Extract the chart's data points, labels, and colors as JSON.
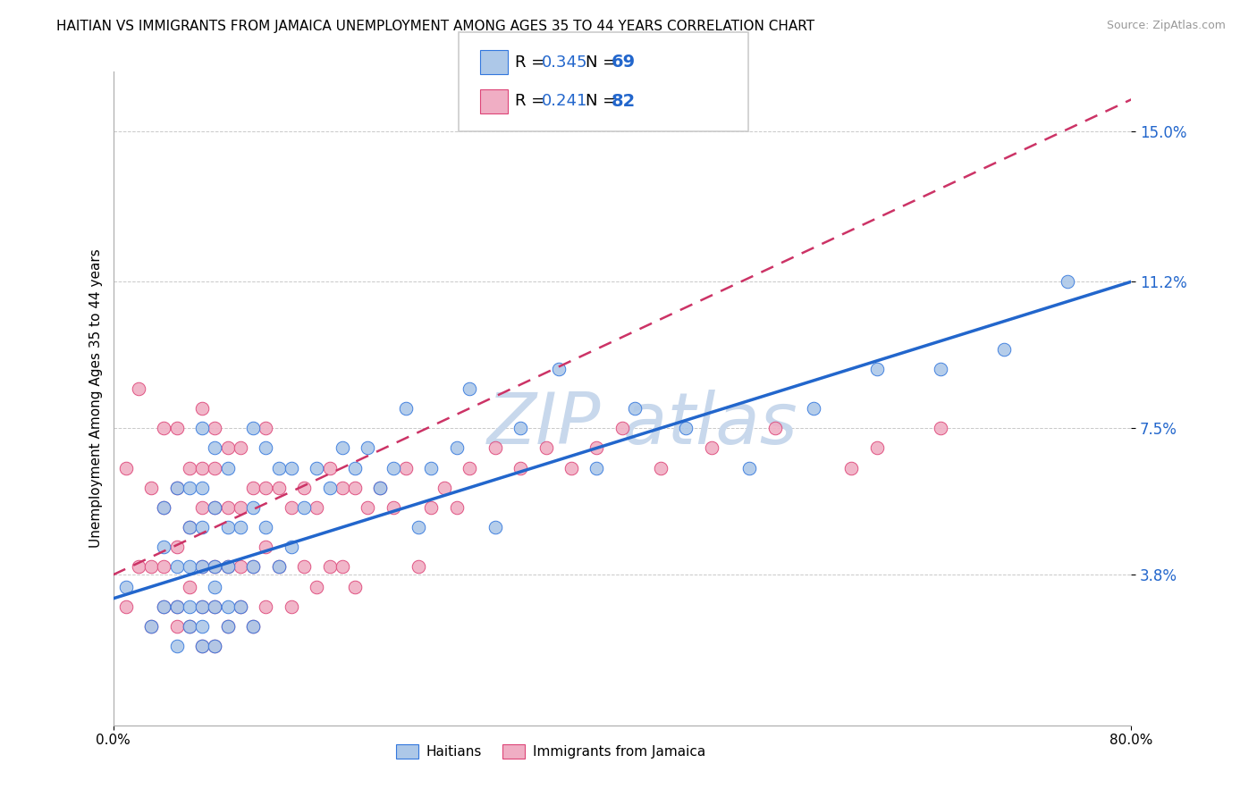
{
  "title": "HAITIAN VS IMMIGRANTS FROM JAMAICA UNEMPLOYMENT AMONG AGES 35 TO 44 YEARS CORRELATION CHART",
  "source": "Source: ZipAtlas.com",
  "ylabel": "Unemployment Among Ages 35 to 44 years",
  "xlim": [
    0.0,
    0.8
  ],
  "ylim": [
    0.0,
    0.165
  ],
  "xtick_positions": [
    0.0,
    0.8
  ],
  "xticklabels": [
    "0.0%",
    "80.0%"
  ],
  "ytick_positions": [
    0.038,
    0.075,
    0.112,
    0.15
  ],
  "ytick_labels": [
    "3.8%",
    "7.5%",
    "11.2%",
    "15.0%"
  ],
  "bottom_legend_blue": "Haitians",
  "bottom_legend_pink": "Immigrants from Jamaica",
  "blue_R": 0.345,
  "blue_N": 69,
  "pink_R": 0.241,
  "pink_N": 82,
  "blue_color": "#adc8e8",
  "pink_color": "#f0aec4",
  "blue_line_color": "#2266cc",
  "pink_line_color": "#cc3366",
  "blue_edge_color": "#3377dd",
  "pink_edge_color": "#dd4477",
  "title_fontsize": 11,
  "source_fontsize": 9,
  "watermark_color": "#c8d8ec",
  "scatter_size": 110,
  "blue_scatter_x": [
    0.01,
    0.03,
    0.04,
    0.04,
    0.04,
    0.05,
    0.05,
    0.05,
    0.05,
    0.06,
    0.06,
    0.06,
    0.06,
    0.06,
    0.07,
    0.07,
    0.07,
    0.07,
    0.07,
    0.07,
    0.07,
    0.08,
    0.08,
    0.08,
    0.08,
    0.08,
    0.08,
    0.09,
    0.09,
    0.09,
    0.09,
    0.09,
    0.1,
    0.1,
    0.11,
    0.11,
    0.11,
    0.11,
    0.12,
    0.12,
    0.13,
    0.13,
    0.14,
    0.14,
    0.15,
    0.16,
    0.17,
    0.18,
    0.19,
    0.2,
    0.21,
    0.22,
    0.23,
    0.24,
    0.25,
    0.27,
    0.28,
    0.3,
    0.32,
    0.35,
    0.38,
    0.41,
    0.45,
    0.5,
    0.55,
    0.6,
    0.65,
    0.7,
    0.75
  ],
  "blue_scatter_y": [
    0.035,
    0.025,
    0.03,
    0.045,
    0.055,
    0.02,
    0.03,
    0.04,
    0.06,
    0.025,
    0.03,
    0.04,
    0.05,
    0.06,
    0.02,
    0.025,
    0.03,
    0.04,
    0.05,
    0.06,
    0.075,
    0.02,
    0.03,
    0.035,
    0.04,
    0.055,
    0.07,
    0.025,
    0.03,
    0.04,
    0.05,
    0.065,
    0.03,
    0.05,
    0.025,
    0.04,
    0.055,
    0.075,
    0.05,
    0.07,
    0.04,
    0.065,
    0.045,
    0.065,
    0.055,
    0.065,
    0.06,
    0.07,
    0.065,
    0.07,
    0.06,
    0.065,
    0.08,
    0.05,
    0.065,
    0.07,
    0.085,
    0.05,
    0.075,
    0.09,
    0.065,
    0.08,
    0.075,
    0.065,
    0.08,
    0.09,
    0.09,
    0.095,
    0.112
  ],
  "pink_scatter_x": [
    0.01,
    0.01,
    0.02,
    0.02,
    0.03,
    0.03,
    0.03,
    0.04,
    0.04,
    0.04,
    0.04,
    0.05,
    0.05,
    0.05,
    0.05,
    0.05,
    0.06,
    0.06,
    0.06,
    0.06,
    0.07,
    0.07,
    0.07,
    0.07,
    0.07,
    0.07,
    0.08,
    0.08,
    0.08,
    0.08,
    0.08,
    0.08,
    0.09,
    0.09,
    0.09,
    0.09,
    0.1,
    0.1,
    0.1,
    0.1,
    0.11,
    0.11,
    0.11,
    0.12,
    0.12,
    0.12,
    0.12,
    0.13,
    0.13,
    0.14,
    0.14,
    0.15,
    0.15,
    0.16,
    0.16,
    0.17,
    0.17,
    0.18,
    0.18,
    0.19,
    0.19,
    0.2,
    0.21,
    0.22,
    0.23,
    0.24,
    0.25,
    0.26,
    0.27,
    0.28,
    0.3,
    0.32,
    0.34,
    0.36,
    0.38,
    0.4,
    0.43,
    0.47,
    0.52,
    0.58,
    0.6,
    0.65
  ],
  "pink_scatter_y": [
    0.03,
    0.065,
    0.04,
    0.085,
    0.025,
    0.04,
    0.06,
    0.03,
    0.04,
    0.055,
    0.075,
    0.025,
    0.03,
    0.045,
    0.06,
    0.075,
    0.025,
    0.035,
    0.05,
    0.065,
    0.02,
    0.03,
    0.04,
    0.055,
    0.065,
    0.08,
    0.02,
    0.03,
    0.04,
    0.055,
    0.065,
    0.075,
    0.025,
    0.04,
    0.055,
    0.07,
    0.03,
    0.04,
    0.055,
    0.07,
    0.025,
    0.04,
    0.06,
    0.03,
    0.045,
    0.06,
    0.075,
    0.04,
    0.06,
    0.03,
    0.055,
    0.04,
    0.06,
    0.035,
    0.055,
    0.04,
    0.065,
    0.04,
    0.06,
    0.035,
    0.06,
    0.055,
    0.06,
    0.055,
    0.065,
    0.04,
    0.055,
    0.06,
    0.055,
    0.065,
    0.07,
    0.065,
    0.07,
    0.065,
    0.07,
    0.075,
    0.065,
    0.07,
    0.075,
    0.065,
    0.07,
    0.075
  ],
  "blue_line_start_x": 0.0,
  "blue_line_start_y": 0.032,
  "blue_line_end_x": 0.8,
  "blue_line_end_y": 0.112,
  "pink_line_start_x": 0.0,
  "pink_line_start_y": 0.038,
  "pink_line_end_x": 0.8,
  "pink_line_end_y": 0.158
}
